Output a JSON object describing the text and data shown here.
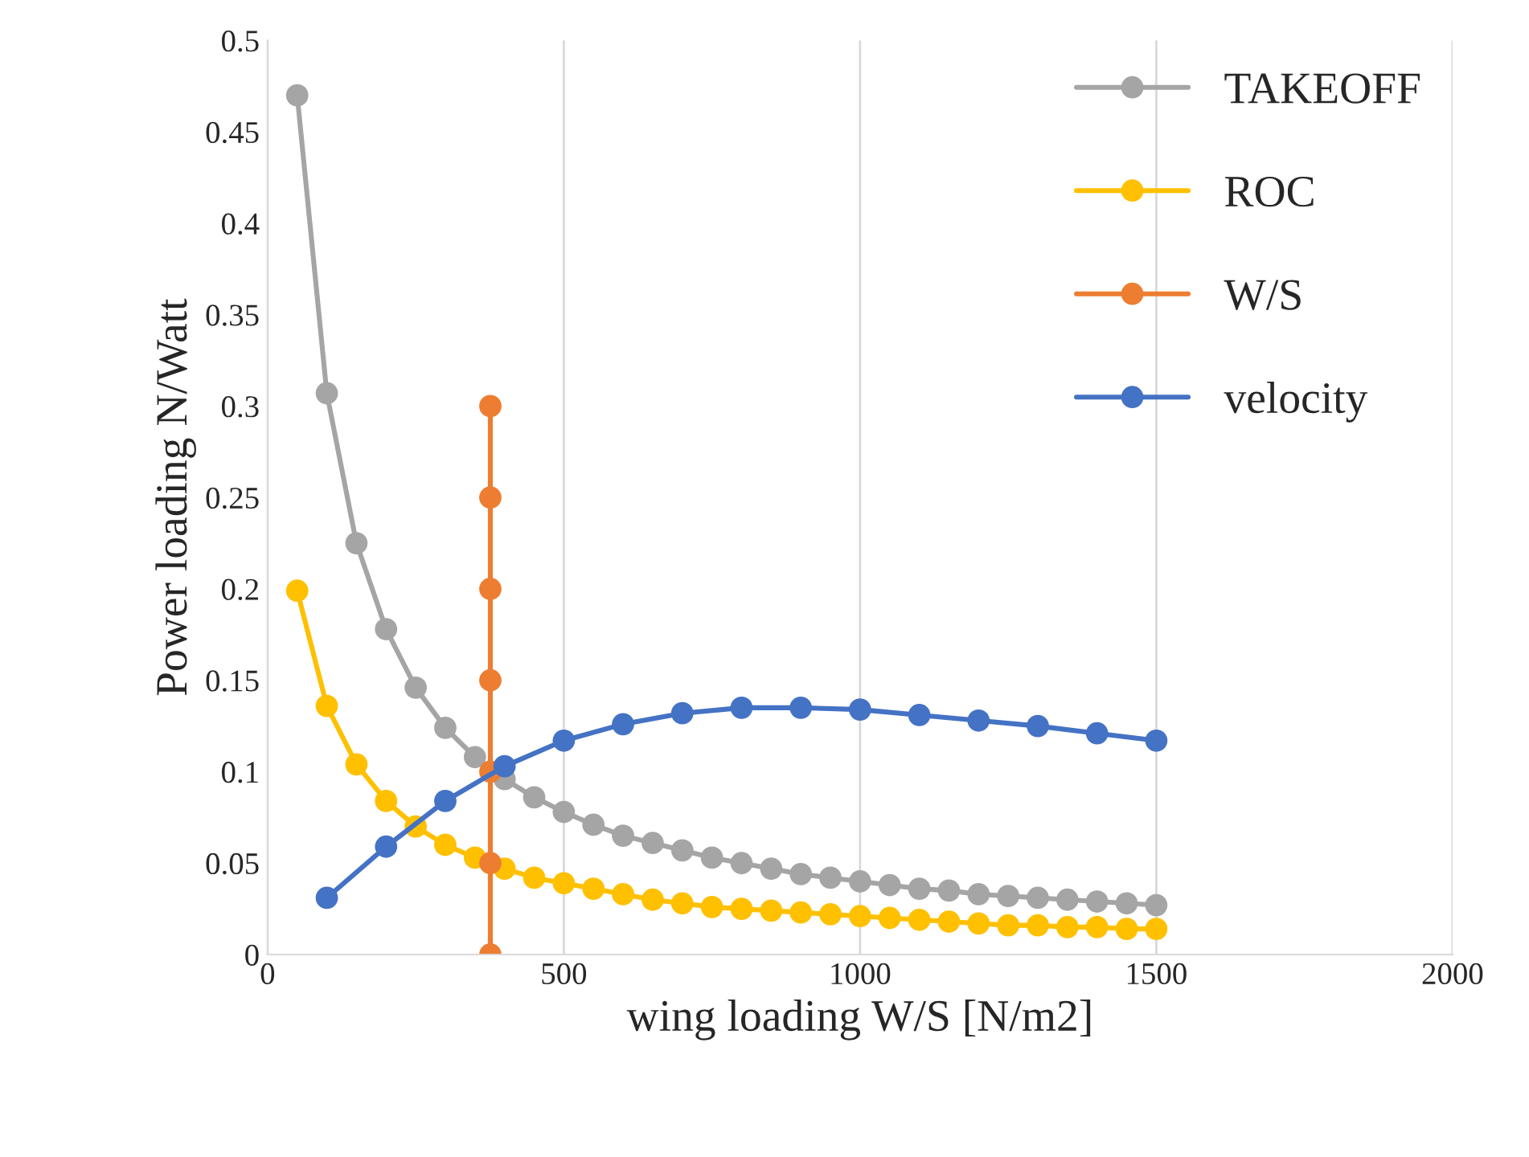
{
  "chart_data": {
    "type": "line",
    "xlabel": "wing loading W/S [N/m2]",
    "ylabel": "Power loading N/Watt",
    "xlim": [
      0,
      2000
    ],
    "xticks": [
      0,
      500,
      1000,
      1500,
      2000
    ],
    "ylim": [
      0,
      0.5
    ],
    "yticks": [
      0,
      0.05,
      0.1,
      0.15,
      0.2,
      0.25,
      0.3,
      0.35,
      0.4,
      0.45,
      0.5
    ],
    "grid": "x",
    "legend": "top right",
    "marker": "circle",
    "line_style": "solid",
    "series": [
      {
        "name": "TAKEOFF",
        "color": "#a5a5a5",
        "x": [
          50,
          100,
          150,
          200,
          250,
          300,
          350,
          400,
          450,
          500,
          550,
          600,
          650,
          700,
          750,
          800,
          850,
          900,
          950,
          1000,
          1050,
          1100,
          1150,
          1200,
          1250,
          1300,
          1350,
          1400,
          1450,
          1500
        ],
        "values": [
          0.47,
          0.307,
          0.225,
          0.178,
          0.146,
          0.124,
          0.108,
          0.096,
          0.086,
          0.078,
          0.071,
          0.065,
          0.061,
          0.057,
          0.053,
          0.05,
          0.047,
          0.044,
          0.042,
          0.04,
          0.038,
          0.036,
          0.035,
          0.033,
          0.032,
          0.031,
          0.03,
          0.029,
          0.028,
          0.027
        ]
      },
      {
        "name": "ROC",
        "color": "#ffc000",
        "x": [
          50,
          100,
          150,
          200,
          250,
          300,
          350,
          400,
          450,
          500,
          550,
          600,
          650,
          700,
          750,
          800,
          850,
          900,
          950,
          1000,
          1050,
          1100,
          1150,
          1200,
          1250,
          1300,
          1350,
          1400,
          1450,
          1500
        ],
        "values": [
          0.199,
          0.136,
          0.104,
          0.084,
          0.07,
          0.06,
          0.053,
          0.047,
          0.042,
          0.039,
          0.036,
          0.033,
          0.03,
          0.028,
          0.026,
          0.025,
          0.024,
          0.023,
          0.022,
          0.021,
          0.02,
          0.019,
          0.018,
          0.017,
          0.016,
          0.016,
          0.015,
          0.015,
          0.014,
          0.014
        ]
      },
      {
        "name": "W/S",
        "color": "#ed7d31",
        "x": [
          376,
          376,
          376,
          376,
          376,
          376,
          376
        ],
        "values": [
          0,
          0.05,
          0.1,
          0.15,
          0.2,
          0.25,
          0.3
        ]
      },
      {
        "name": "velocity",
        "color": "#4472c4",
        "x": [
          100,
          200,
          300,
          400,
          500,
          600,
          700,
          800,
          900,
          1000,
          1100,
          1200,
          1300,
          1400,
          1500
        ],
        "values": [
          0.031,
          0.059,
          0.084,
          0.103,
          0.117,
          0.126,
          0.132,
          0.135,
          0.135,
          0.134,
          0.131,
          0.128,
          0.125,
          0.121,
          0.117
        ]
      }
    ]
  }
}
